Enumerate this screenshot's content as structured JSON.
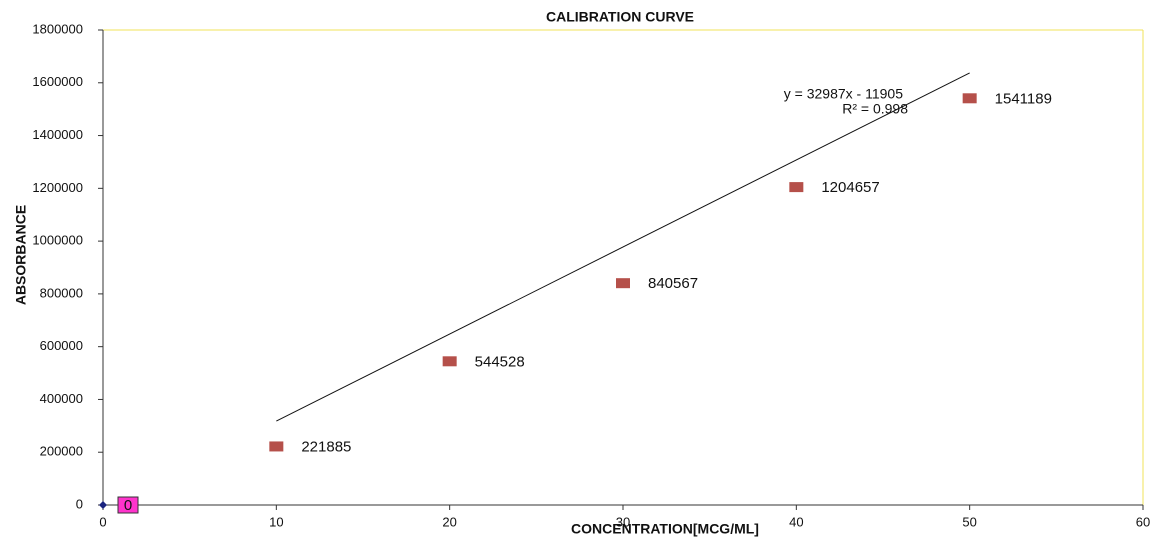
{
  "chart_data": {
    "type": "scatter",
    "title": "CALIBRATION  CURVE",
    "x_label": "CONCENTRATION[MCG/ML]",
    "y_label": "ABSORBANCE",
    "xlim": [
      0,
      60
    ],
    "xticks": [
      0,
      10,
      20,
      30,
      40,
      50,
      60
    ],
    "ylim": [
      0,
      1800000
    ],
    "yticks": [
      0,
      200000,
      400000,
      600000,
      800000,
      1000000,
      1200000,
      1400000,
      1600000,
      1800000
    ],
    "grid": false,
    "series": [
      {
        "marker": "diamond",
        "color": "#1a237e",
        "label_background": "#ff33cc",
        "x": [
          0
        ],
        "values": [
          0
        ]
      },
      {
        "marker": "square",
        "color": "#b5504a",
        "x": [
          10,
          20,
          30,
          40,
          50
        ],
        "values": [
          221885,
          544528,
          840567,
          1204657,
          1541189
        ]
      }
    ],
    "trendline": {
      "slope": 32987,
      "intercept": -11905,
      "x_range": [
        10,
        50
      ],
      "label": "y = 32987x - 11905",
      "r2_label": "R² = 0.998"
    }
  }
}
